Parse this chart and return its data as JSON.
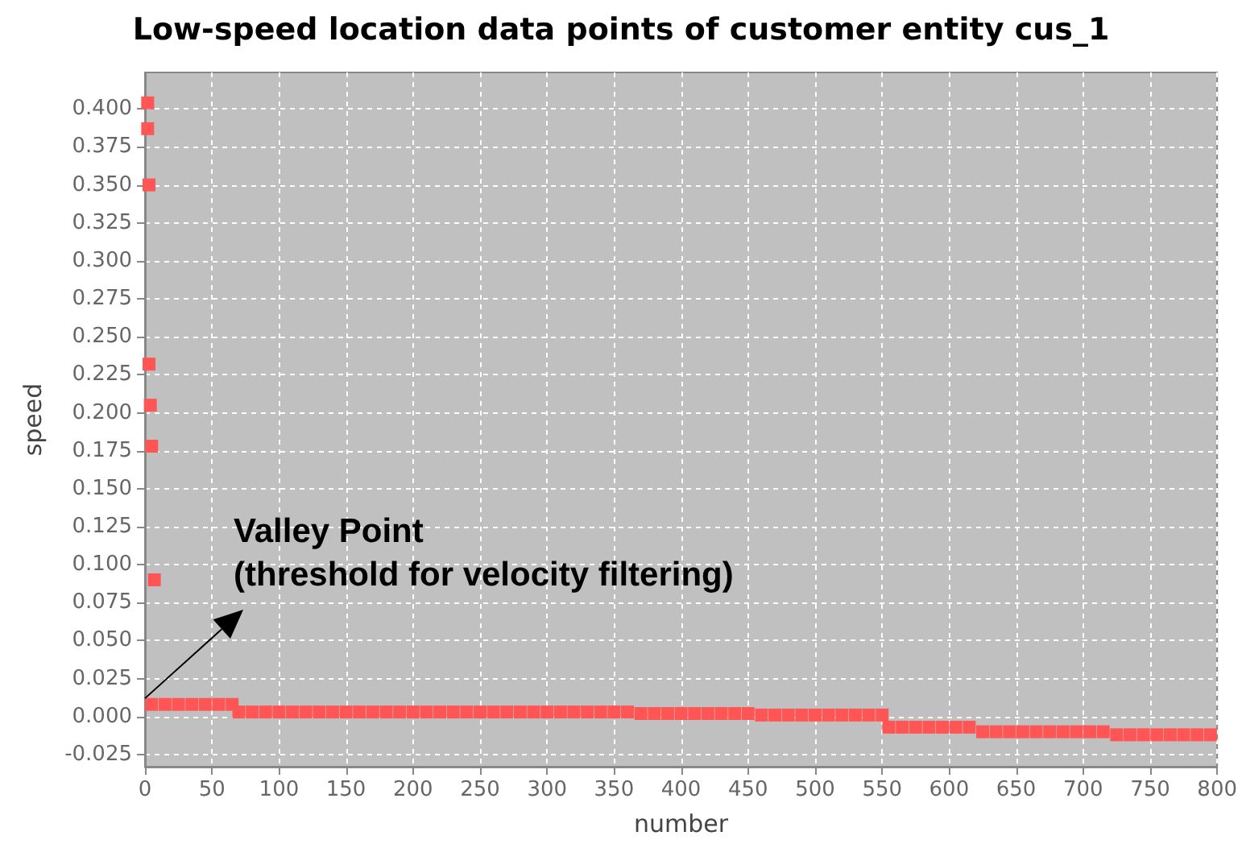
{
  "chart_data": {
    "type": "scatter",
    "title": "Low-speed location data points of customer entity cus_1",
    "xlabel": "number",
    "ylabel": "speed",
    "x": [
      2,
      2,
      3,
      3,
      4,
      5,
      7,
      5,
      15,
      25,
      35,
      45,
      55,
      65,
      70,
      80,
      90,
      100,
      110,
      120,
      130,
      140,
      150,
      160,
      170,
      180,
      190,
      200,
      210,
      220,
      230,
      240,
      250,
      260,
      270,
      280,
      290,
      300,
      310,
      320,
      330,
      340,
      350,
      360,
      370,
      380,
      390,
      400,
      410,
      420,
      430,
      440,
      450,
      460,
      470,
      480,
      490,
      500,
      510,
      520,
      530,
      540,
      550,
      555,
      565,
      575,
      585,
      595,
      605,
      615,
      625,
      635,
      645,
      655,
      665,
      675,
      685,
      695,
      705,
      715,
      725,
      735,
      745,
      755,
      765,
      775,
      785,
      795
    ],
    "series": [
      {
        "color": "#ff5555",
        "values": [
          0.404,
          0.387,
          0.35,
          0.232,
          0.205,
          0.178,
          0.09,
          0.008,
          0.008,
          0.008,
          0.008,
          0.008,
          0.008,
          0.008,
          0.003,
          0.003,
          0.003,
          0.003,
          0.003,
          0.003,
          0.003,
          0.003,
          0.003,
          0.003,
          0.003,
          0.003,
          0.003,
          0.003,
          0.003,
          0.003,
          0.003,
          0.003,
          0.003,
          0.003,
          0.003,
          0.003,
          0.003,
          0.003,
          0.003,
          0.003,
          0.003,
          0.003,
          0.003,
          0.003,
          0.002,
          0.002,
          0.002,
          0.002,
          0.002,
          0.002,
          0.002,
          0.002,
          0.002,
          0.001,
          0.001,
          0.001,
          0.001,
          0.001,
          0.001,
          0.001,
          0.001,
          0.001,
          0.001,
          -0.007,
          -0.007,
          -0.007,
          -0.007,
          -0.007,
          -0.007,
          -0.007,
          -0.01,
          -0.01,
          -0.01,
          -0.01,
          -0.01,
          -0.01,
          -0.01,
          -0.01,
          -0.01,
          -0.01,
          -0.012,
          -0.012,
          -0.012,
          -0.012,
          -0.012,
          -0.012,
          -0.012,
          -0.012
        ]
      }
    ],
    "marker": "square",
    "grid": true,
    "xlim": [
      0,
      800
    ],
    "xticks": [
      0,
      50,
      100,
      150,
      200,
      250,
      300,
      350,
      400,
      450,
      500,
      550,
      600,
      650,
      700,
      750,
      800
    ],
    "ylim": [
      -0.033,
      0.424
    ],
    "yticks": [
      {
        "value": -0.025,
        "label": "-0.025"
      },
      {
        "value": 0,
        "label": "0.000"
      },
      {
        "value": 0.025,
        "label": "0.025"
      },
      {
        "value": 0.05,
        "label": "0.050"
      },
      {
        "value": 0.075,
        "label": "0.075"
      },
      {
        "value": 0.1,
        "label": "0.100"
      },
      {
        "value": 0.125,
        "label": "0.125"
      },
      {
        "value": 0.15,
        "label": "0.150"
      },
      {
        "value": 0.175,
        "label": "0.175"
      },
      {
        "value": 0.2,
        "label": "0.200"
      },
      {
        "value": 0.225,
        "label": "0.225"
      },
      {
        "value": 0.25,
        "label": "0.250"
      },
      {
        "value": 0.275,
        "label": "0.275"
      },
      {
        "value": 0.3,
        "label": "0.300"
      },
      {
        "value": 0.325,
        "label": "0.325"
      },
      {
        "value": 0.35,
        "label": "0.350"
      },
      {
        "value": 0.375,
        "label": "0.375"
      },
      {
        "value": 0.4,
        "label": "0.400"
      }
    ],
    "annotations": [
      {
        "text": "Valley Point\n(threshold for velocity filtering)",
        "x": 0,
        "y": 0.012
      }
    ]
  }
}
